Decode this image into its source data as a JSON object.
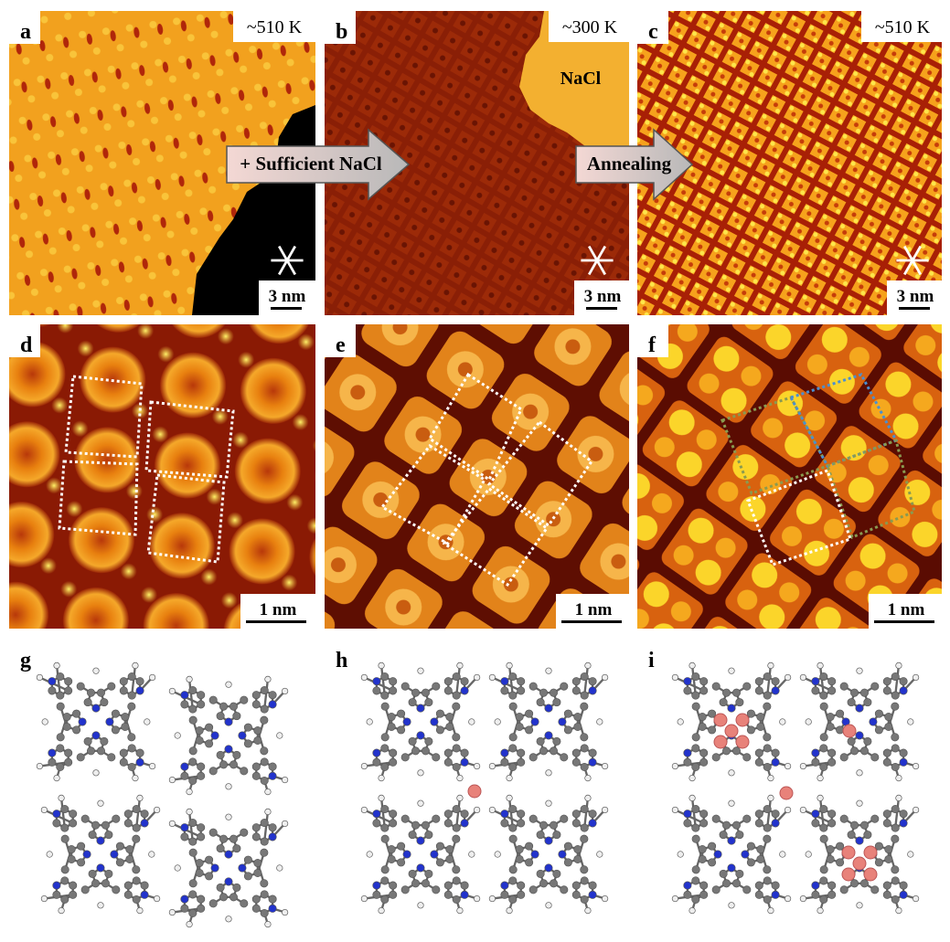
{
  "panels": [
    {
      "label": "a",
      "temperature": "~510 K",
      "scale_bar": "3 nm"
    },
    {
      "label": "b",
      "temperature": "~300 K",
      "scale_bar": "3 nm",
      "annotation": "NaCl"
    },
    {
      "label": "c",
      "temperature": "~510 K",
      "scale_bar": "3 nm"
    },
    {
      "label": "d",
      "scale_bar": "1 nm"
    },
    {
      "label": "e",
      "scale_bar": "1 nm"
    },
    {
      "label": "f",
      "scale_bar": "1 nm"
    },
    {
      "label": "g"
    },
    {
      "label": "h"
    },
    {
      "label": "i"
    }
  ],
  "arrows": [
    "+ Sufficient NaCl",
    "Annealing"
  ]
}
